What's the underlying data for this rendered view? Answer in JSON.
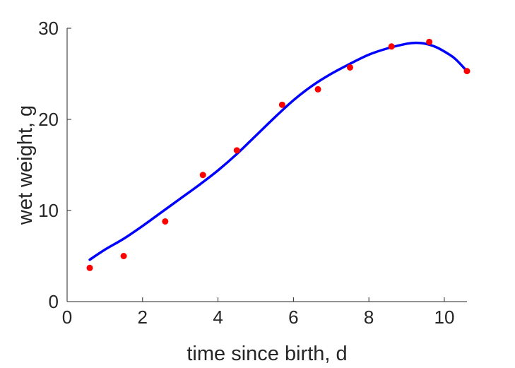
{
  "chart_data": {
    "type": "scatter",
    "title": "",
    "xlabel": "time since birth, d",
    "ylabel": "wet weight, g",
    "xlim": [
      0,
      10.6
    ],
    "ylim": [
      0,
      30
    ],
    "xticks": [
      0,
      2,
      4,
      6,
      8,
      10
    ],
    "yticks": [
      0,
      10,
      20,
      30
    ],
    "grid": false,
    "box": false,
    "colors": {
      "points": "#ff0000",
      "curve": "#0000ff",
      "axis": "#262626"
    },
    "series": [
      {
        "type": "scatter",
        "x": [
          0.6,
          1.5,
          2.6,
          3.6,
          4.5,
          5.7,
          6.65,
          7.5,
          8.6,
          9.6,
          10.6
        ],
        "y": [
          3.7,
          5.0,
          8.8,
          13.9,
          16.6,
          21.6,
          23.3,
          25.7,
          28.0,
          28.5,
          25.3
        ]
      },
      {
        "type": "line",
        "x": [
          0.6,
          1.0,
          1.5,
          2.0,
          2.5,
          3.0,
          3.5,
          4.0,
          4.5,
          5.0,
          5.5,
          6.0,
          6.5,
          7.0,
          7.5,
          8.0,
          8.5,
          9.0,
          9.25,
          9.5,
          9.8,
          10.1,
          10.3,
          10.6
        ],
        "y": [
          4.6,
          5.7,
          6.9,
          8.3,
          9.8,
          11.3,
          12.8,
          14.4,
          16.2,
          18.2,
          20.2,
          22.1,
          23.7,
          25.0,
          26.1,
          27.1,
          27.8,
          28.3,
          28.4,
          28.3,
          27.9,
          27.2,
          26.6,
          25.3
        ]
      }
    ]
  }
}
